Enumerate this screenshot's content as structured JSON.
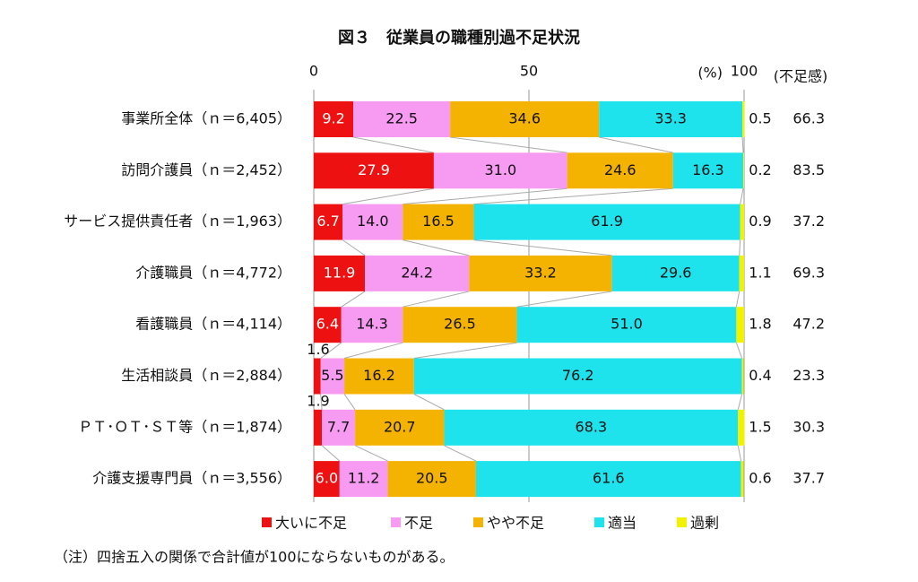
{
  "chart_data": {
    "type": "stacked-bar-horizontal",
    "title": "図３　従業員の職種別過不足状況",
    "categories": [
      "事業所全体（ｎ＝6,405）",
      "訪問介護員（ｎ＝2,452）",
      "サービス提供責任者（ｎ＝1,963）",
      "介護職員（ｎ＝4,772）",
      "看護職員（ｎ＝4,114）",
      "生活相談員（ｎ＝2,884）",
      "ＰＴ･ＯＴ･ＳＴ等（ｎ＝1,874）",
      "介護支援専門員（ｎ＝3,556）"
    ],
    "series": [
      {
        "name": "大いに不足",
        "color": "#ee1111",
        "values": [
          9.2,
          27.9,
          6.7,
          11.9,
          6.4,
          1.6,
          1.9,
          6.0
        ],
        "value_labels": [
          "9.2",
          "27.9",
          "6.7",
          "11.9",
          "6.4",
          "1.6",
          "1.9",
          "6.0"
        ]
      },
      {
        "name": "不足",
        "color": "#f79af2",
        "values": [
          22.5,
          31.0,
          14.0,
          24.2,
          14.3,
          5.5,
          7.7,
          11.2
        ],
        "value_labels": [
          "22.5",
          "31.0",
          "14.0",
          "24.2",
          "14.3",
          "5.5",
          "7.7",
          "11.2"
        ]
      },
      {
        "name": "やや不足",
        "color": "#f5b301",
        "values": [
          34.6,
          24.6,
          16.5,
          33.2,
          26.5,
          16.2,
          20.7,
          20.5
        ],
        "value_labels": [
          "34.6",
          "24.6",
          "16.5",
          "33.2",
          "26.5",
          "16.2",
          "20.7",
          "20.5"
        ]
      },
      {
        "name": "適当",
        "color": "#1fe3ec",
        "values": [
          33.3,
          16.3,
          61.9,
          29.6,
          51.0,
          76.2,
          68.3,
          61.6
        ],
        "value_labels": [
          "33.3",
          "16.3",
          "61.9",
          "29.6",
          "51.0",
          "76.2",
          "68.3",
          "61.6"
        ]
      },
      {
        "name": "過剰",
        "color": "#f2f200",
        "values": [
          0.5,
          0.2,
          0.9,
          1.1,
          1.8,
          0.4,
          1.5,
          0.6
        ],
        "value_labels": [
          "0.5",
          "0.2",
          "0.9",
          "1.1",
          "1.8",
          "0.4",
          "1.5",
          "0.6"
        ]
      }
    ],
    "shortage": {
      "label": "(不足感)",
      "values": [
        66.3,
        83.5,
        37.2,
        69.3,
        47.2,
        23.3,
        30.3,
        37.7
      ]
    },
    "unit_label": "(%)",
    "xlim": [
      0,
      100
    ],
    "xticks": [
      0,
      50,
      100
    ],
    "note": "（注）四捨五入の関係で合計値が100にならないものがある。"
  }
}
